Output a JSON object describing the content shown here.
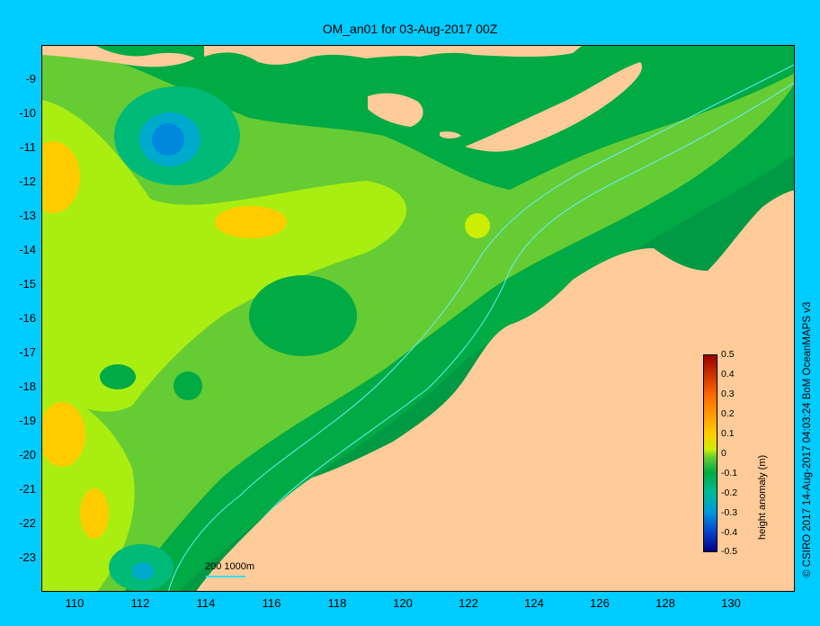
{
  "title": "OM_an01 for 03-Aug-2017 00Z",
  "credit": "© CSIRO 2017   14-Aug-2017 04:03:24 BoM OceanMAPS v3",
  "colorbar": {
    "label": "height anomaly (m)",
    "ticks": [
      "0.5",
      "0.4",
      "0.3",
      "0.2",
      "0.1",
      "0",
      "-0.1",
      "-0.2",
      "-0.3",
      "-0.4",
      "-0.5"
    ],
    "range": [
      -0.5,
      0.5
    ]
  },
  "axes": {
    "y_ticks": [
      "-9",
      "-10",
      "-11",
      "-12",
      "-13",
      "-14",
      "-15",
      "-16",
      "-17",
      "-18",
      "-19",
      "-20",
      "-21",
      "-22",
      "-23"
    ],
    "x_ticks": [
      "110",
      "112",
      "114",
      "116",
      "118",
      "120",
      "122",
      "124",
      "126",
      "128",
      "130"
    ]
  },
  "scale_bar": {
    "label": "200  1000m"
  },
  "colors": {
    "background": "#00ccff",
    "land": "#ffcc99",
    "zero_anomaly": "#66cc33",
    "positive": "#ccee00",
    "negative": "#00aa44",
    "contour": "#66eeff"
  }
}
